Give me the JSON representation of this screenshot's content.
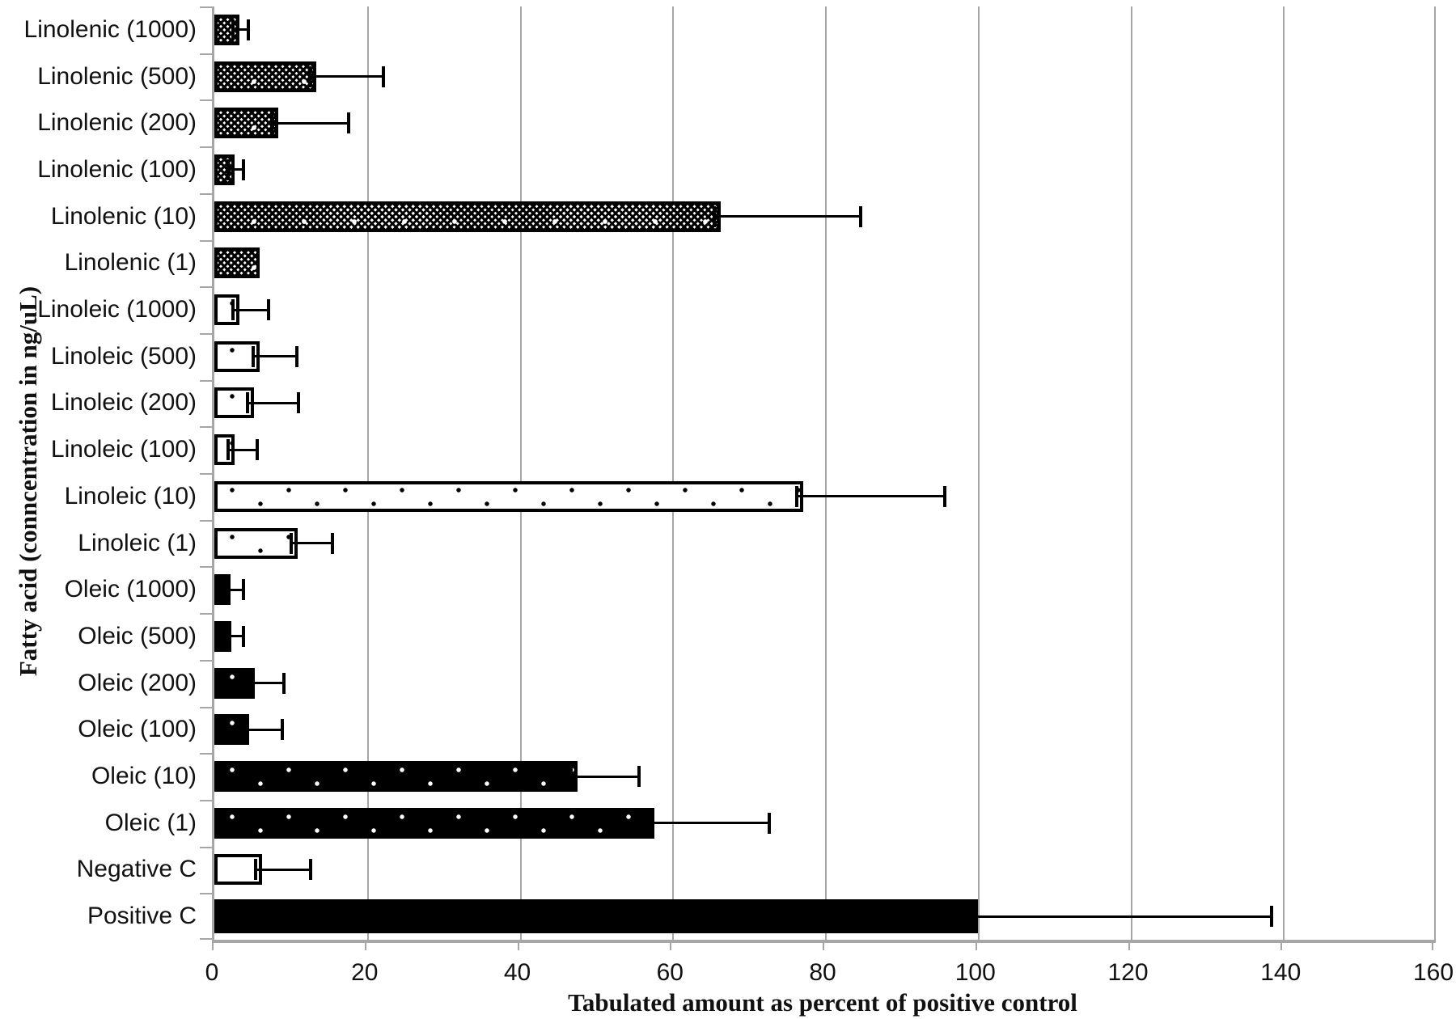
{
  "chart_data": {
    "type": "bar",
    "orientation": "horizontal",
    "title": "",
    "xlabel": "Tabulated amount as percent of positive control",
    "ylabel": "Fatty acid (conncentration in ng/uL)",
    "xlim": [
      0,
      160
    ],
    "xticks": [
      0,
      20,
      40,
      60,
      80,
      100,
      120,
      140,
      160
    ],
    "grid": "vertical-gray",
    "legend": "none",
    "bar_patterns": {
      "linolenic": "dark checkerboard with white diamond sparkles",
      "linoleic": "white with small black dots",
      "oleic": "black with small white dots",
      "negative": "plain white, black outline",
      "positive": "solid black"
    },
    "colors": {
      "grid": "#a6a6a6",
      "bar_outline": "#000000",
      "text": "#111111"
    },
    "rows": [
      {
        "label": "Linolenic (1000)",
        "value": 3.3,
        "err_tip": 4.4,
        "pattern": "linolenic"
      },
      {
        "label": "Linolenic (500)",
        "value": 13.3,
        "err_tip": 22.1,
        "pattern": "linolenic"
      },
      {
        "label": "Linolenic (200)",
        "value": 8.4,
        "err_tip": 17.6,
        "pattern": "linolenic"
      },
      {
        "label": "Linolenic (100)",
        "value": 2.6,
        "err_tip": 3.8,
        "pattern": "linolenic"
      },
      {
        "label": "Linolenic (10)",
        "value": 66.3,
        "err_tip": 84.7,
        "pattern": "linolenic"
      },
      {
        "label": "Linolenic (1)",
        "value": 5.9,
        "err_tip": null,
        "pattern": "linolenic"
      },
      {
        "label": "Linoleic (1000)",
        "value": 3.3,
        "err_tip": 7.1,
        "pattern": "linoleic"
      },
      {
        "label": "Linoleic (500)",
        "value": 5.9,
        "err_tip": 10.8,
        "pattern": "linoleic"
      },
      {
        "label": "Linoleic (200)",
        "value": 5.2,
        "err_tip": 11.0,
        "pattern": "linoleic"
      },
      {
        "label": "Linoleic (100)",
        "value": 2.7,
        "err_tip": 5.6,
        "pattern": "linoleic"
      },
      {
        "label": "Linoleic (10)",
        "value": 77.1,
        "err_tip": 95.7,
        "pattern": "linoleic"
      },
      {
        "label": "Linoleic (1)",
        "value": 10.9,
        "err_tip": 15.5,
        "pattern": "linoleic"
      },
      {
        "label": "Oleic (1000)",
        "value": 2.1,
        "err_tip": 3.8,
        "pattern": "oleic"
      },
      {
        "label": "Oleic (500)",
        "value": 2.2,
        "err_tip": 3.8,
        "pattern": "oleic"
      },
      {
        "label": "Oleic (200)",
        "value": 5.3,
        "err_tip": 9.1,
        "pattern": "oleic"
      },
      {
        "label": "Oleic (100)",
        "value": 4.6,
        "err_tip": 8.9,
        "pattern": "oleic"
      },
      {
        "label": "Oleic (10)",
        "value": 47.6,
        "err_tip": 55.6,
        "pattern": "oleic"
      },
      {
        "label": "Oleic (1)",
        "value": 57.6,
        "err_tip": 72.7,
        "pattern": "oleic"
      },
      {
        "label": "Negative C",
        "value": 6.2,
        "err_tip": 12.6,
        "pattern": "negative"
      },
      {
        "label": "Positive C",
        "value": 100.0,
        "err_tip": 138.5,
        "pattern": "positive"
      }
    ]
  }
}
